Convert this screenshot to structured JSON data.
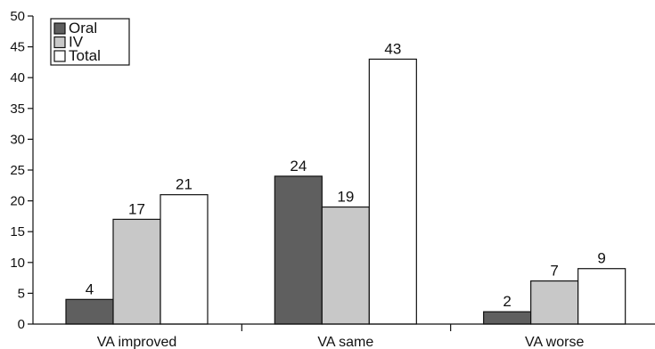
{
  "chart_data": {
    "type": "bar",
    "categories": [
      "VA improved",
      "VA same",
      "VA worse"
    ],
    "series": [
      {
        "name": "Oral",
        "values": [
          4,
          24,
          2
        ],
        "color": "#5f5f5f"
      },
      {
        "name": "IV",
        "values": [
          17,
          19,
          7
        ],
        "color": "#c8c8c8"
      },
      {
        "name": "Total",
        "values": [
          21,
          43,
          9
        ],
        "color": "#ffffff"
      }
    ],
    "title": "",
    "xlabel": "",
    "ylabel": "",
    "ylim": [
      0,
      50
    ],
    "yticks": [
      0,
      5,
      10,
      15,
      20,
      25,
      30,
      35,
      40,
      45,
      50
    ],
    "grid": false,
    "legend": "top-left",
    "data_labels": true
  }
}
